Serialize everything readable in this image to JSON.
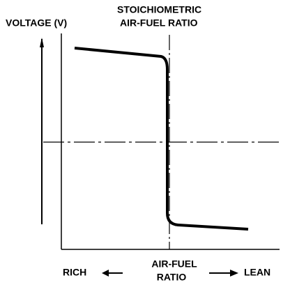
{
  "header": {
    "y_label": "VOLTAGE (V)",
    "annotation": [
      "STOICHIOMETRIC",
      "AIR-FUEL RATIO"
    ]
  },
  "x_axis": {
    "left": "RICH",
    "center": [
      "AIR-FUEL",
      "RATIO"
    ],
    "right": "LEAN"
  }
}
